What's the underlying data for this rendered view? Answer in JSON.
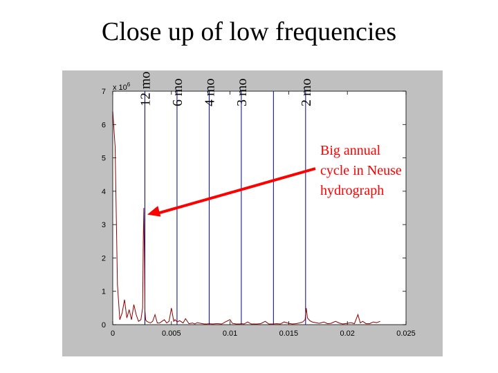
{
  "slide": {
    "title": "Close up of low frequencies"
  },
  "colors": {
    "figure_bg": "#c0c0c0",
    "axes_bg": "#ffffff",
    "spectrum": "#8b0000",
    "vlines": "#00008b",
    "arrow": "#ff0000",
    "annotation": "#ff0000"
  },
  "chart_data": {
    "type": "line",
    "title": "",
    "xlabel": "",
    "ylabel": "",
    "xlim": [
      0,
      0.025
    ],
    "ylim": [
      0,
      7
    ],
    "y_scale_label": {
      "base": "x 10",
      "exponent": "6"
    },
    "xticks": [
      0,
      0.005,
      0.01,
      0.015,
      0.02,
      0.025
    ],
    "xtick_labels": [
      "0",
      "0.005",
      "0.01",
      "0.015",
      "0.02",
      "0.025"
    ],
    "yticks": [
      0,
      1,
      2,
      3,
      4,
      5,
      6,
      7
    ],
    "ytick_labels": [
      "0",
      "1",
      "2",
      "3",
      "4",
      "5",
      "6",
      "7"
    ],
    "grid": false,
    "series": [
      {
        "x": [
          0.0,
          0.0002,
          0.0004,
          0.0006,
          0.0008,
          0.001,
          0.0012,
          0.0014,
          0.0016,
          0.0018,
          0.002,
          0.0022,
          0.0024,
          0.00255,
          0.0026,
          0.00265,
          0.0027,
          0.00275,
          0.0028,
          0.0029,
          0.003,
          0.0032,
          0.0034,
          0.0036,
          0.0038,
          0.004,
          0.0042,
          0.0044,
          0.0046,
          0.0048,
          0.005,
          0.0052,
          0.0053,
          0.0055,
          0.0057,
          0.006,
          0.0062,
          0.0065,
          0.0068,
          0.007,
          0.0072,
          0.0075,
          0.0078,
          0.008,
          0.0082,
          0.0085,
          0.0088,
          0.009,
          0.0093,
          0.0096,
          0.01,
          0.0102,
          0.0105,
          0.0108,
          0.011,
          0.0112,
          0.0115,
          0.0118,
          0.012,
          0.0123,
          0.0126,
          0.013,
          0.0133,
          0.0136,
          0.014,
          0.0143,
          0.0146,
          0.015,
          0.0153,
          0.0156,
          0.0159,
          0.0162,
          0.0164,
          0.0165,
          0.0166,
          0.0168,
          0.017,
          0.0173,
          0.0176,
          0.018,
          0.0183,
          0.0186,
          0.019,
          0.0193,
          0.0196,
          0.02,
          0.0203,
          0.0206,
          0.0209,
          0.0211,
          0.0213,
          0.0216,
          0.0219,
          0.0222,
          0.0225,
          0.0228
        ],
        "y": [
          6.4,
          5.35,
          1.2,
          0.15,
          0.35,
          0.75,
          0.2,
          0.45,
          0.15,
          0.6,
          0.3,
          0.1,
          0.15,
          0.5,
          2.5,
          3.5,
          2.0,
          0.4,
          0.15,
          0.1,
          0.08,
          0.05,
          0.1,
          0.3,
          0.05,
          0.05,
          0.1,
          0.15,
          0.05,
          0.1,
          0.5,
          0.1,
          0.15,
          0.08,
          0.12,
          0.05,
          0.18,
          0.03,
          0.05,
          0.02,
          0.06,
          0.04,
          0.02,
          0.02,
          0.03,
          0.02,
          0.03,
          0.03,
          0.02,
          0.08,
          0.15,
          0.04,
          0.02,
          0.02,
          0.03,
          0.02,
          0.08,
          0.02,
          0.02,
          0.02,
          0.03,
          0.1,
          0.02,
          0.02,
          0.03,
          0.02,
          0.08,
          0.04,
          0.02,
          0.03,
          0.05,
          0.08,
          0.15,
          0.5,
          0.2,
          0.12,
          0.08,
          0.06,
          0.04,
          0.08,
          0.03,
          0.04,
          0.1,
          0.05,
          0.02,
          0.04,
          0.06,
          0.03,
          0.3,
          0.05,
          0.1,
          0.03,
          0.03,
          0.08,
          0.06,
          0.1
        ]
      }
    ],
    "vlines": [
      {
        "x": 0.00274,
        "label": "12 mo"
      },
      {
        "x": 0.00548,
        "label": "6 mo"
      },
      {
        "x": 0.00822,
        "label": "4 mo"
      },
      {
        "x": 0.01096,
        "label": "3 mo"
      },
      {
        "x": 0.0137,
        "label": ""
      },
      {
        "x": 0.01644,
        "label": "2 mo"
      }
    ],
    "annotation": {
      "lines": [
        "Big annual",
        "cycle in Neuse",
        "hydrograph"
      ],
      "arrow_to": {
        "x": 0.0033,
        "y": 3.3
      }
    }
  }
}
